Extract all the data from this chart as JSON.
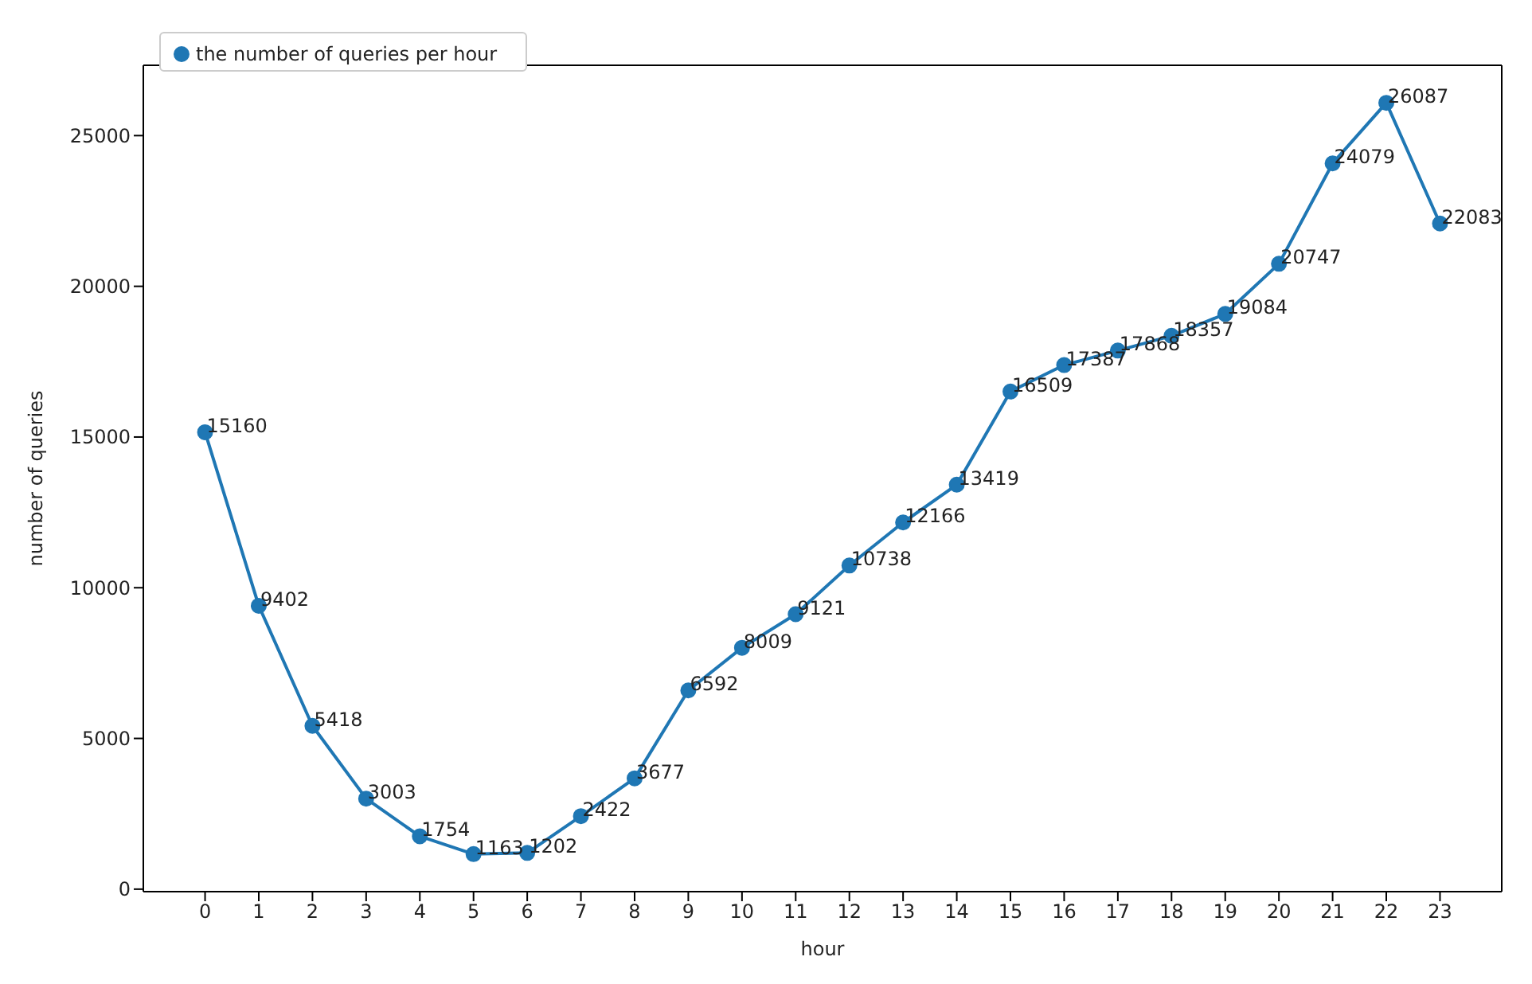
{
  "chart_data": {
    "type": "line",
    "xlabel": "hour",
    "ylabel": "number of queries",
    "x": [
      0,
      1,
      2,
      3,
      4,
      5,
      6,
      7,
      8,
      9,
      10,
      11,
      12,
      13,
      14,
      15,
      16,
      17,
      18,
      19,
      20,
      21,
      22,
      23
    ],
    "series": [
      {
        "name": "the number of queries per hour",
        "color": "#1f77b4",
        "values": [
          15160,
          9402,
          5418,
          3003,
          1754,
          1163,
          1202,
          2422,
          3677,
          6592,
          8009,
          9121,
          10738,
          12166,
          13419,
          16509,
          17387,
          17868,
          18357,
          19084,
          20747,
          24079,
          26087,
          22083
        ]
      }
    ],
    "xlim": [
      -1.15,
      24.15
    ],
    "ylim": [
      -83,
      27333
    ],
    "xticks": [
      0,
      1,
      2,
      3,
      4,
      5,
      6,
      7,
      8,
      9,
      10,
      11,
      12,
      13,
      14,
      15,
      16,
      17,
      18,
      19,
      20,
      21,
      22,
      23
    ],
    "yticks": [
      0,
      5000,
      10000,
      15000,
      20000,
      25000
    ],
    "data_labels": true,
    "legend": "top left",
    "marker": "circle",
    "line_style": "solid",
    "grid": false
  }
}
